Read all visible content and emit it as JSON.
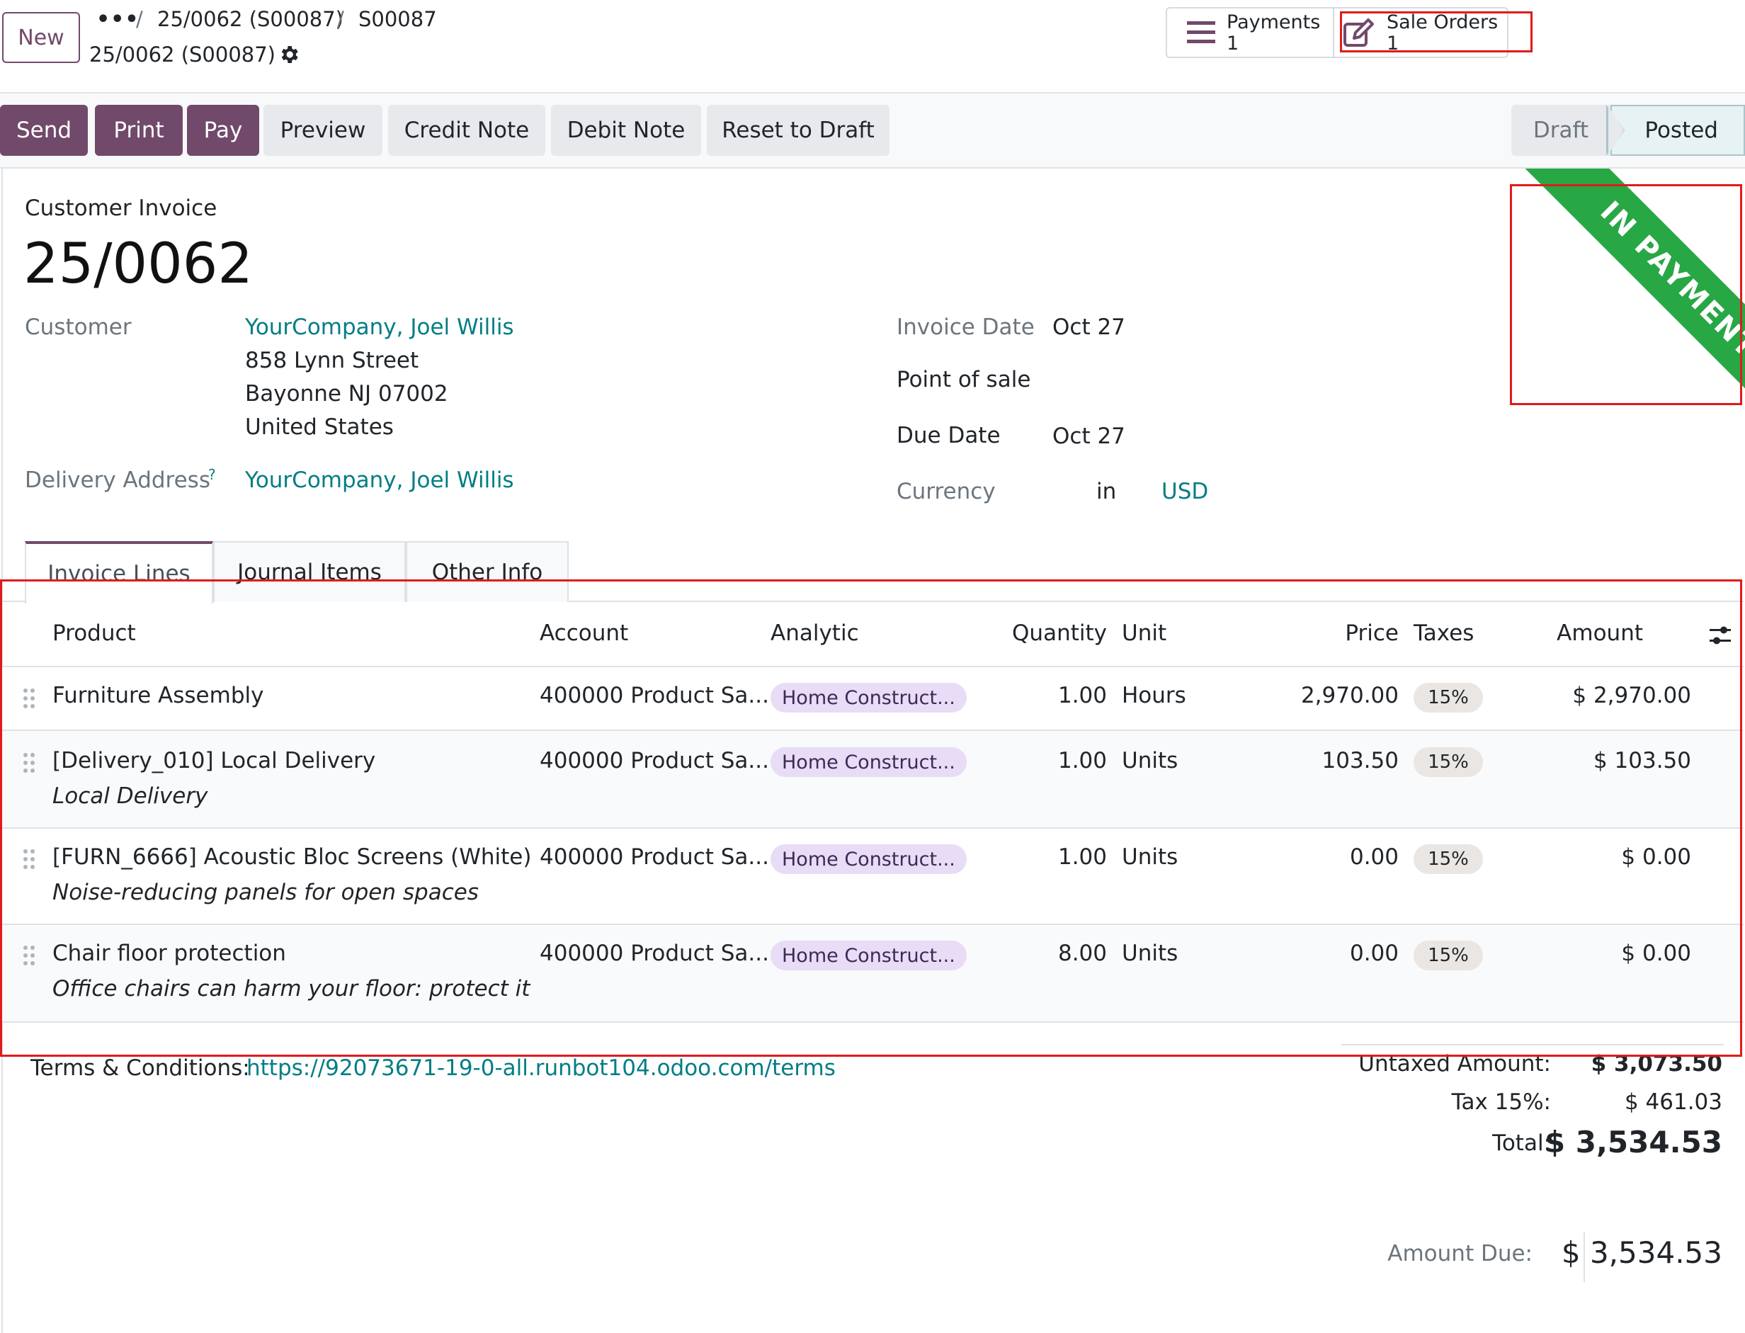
{
  "control_panel": {
    "new_label": "New",
    "breadcrumb": {
      "dots": "•••",
      "sep": "/",
      "item1": "25/0062 (S00087)",
      "item2": "S00087",
      "current": "25/0062 (S00087)"
    },
    "smart_buttons": [
      {
        "label": "Payments",
        "count": "1",
        "icon": "list-icon"
      },
      {
        "label": "Sale Orders",
        "count": "1",
        "icon": "edit-icon"
      }
    ]
  },
  "status_bar": {
    "actions": [
      "Send",
      "Print",
      "Pay",
      "Preview",
      "Credit Note",
      "Debit Note",
      "Reset to Draft"
    ],
    "stages": {
      "draft": "Draft",
      "posted": "Posted"
    },
    "current_stage": "Posted"
  },
  "ribbon": {
    "text": "IN PAYMENT",
    "color": "#28a745"
  },
  "invoice": {
    "type_label": "Customer Invoice",
    "number": "25/0062",
    "customer_label": "Customer",
    "customer_name": "YourCompany, Joel Willis",
    "address": [
      "858 Lynn Street",
      "Bayonne NJ 07002",
      "United States"
    ],
    "delivery_label": "Delivery Address",
    "delivery_help": "?",
    "delivery_name": "YourCompany, Joel Willis",
    "invoice_date_label": "Invoice Date",
    "invoice_date": "Oct 27",
    "pos_label": "Point of sale",
    "due_date_label": "Due Date",
    "due_date": "Oct 27",
    "currency_label": "Currency",
    "currency_in": "in",
    "currency": "USD"
  },
  "tabs": [
    "Invoice Lines",
    "Journal Items",
    "Other Info"
  ],
  "table": {
    "headers": {
      "product": "Product",
      "account": "Account",
      "analytic": "Analytic",
      "quantity": "Quantity",
      "unit": "Unit",
      "price": "Price",
      "taxes": "Taxes",
      "amount": "Amount"
    },
    "rows": [
      {
        "product": "Furniture Assembly",
        "note": "",
        "account": "400000 Product Sa...",
        "analytic": "Home Construct...",
        "quantity": "1.00",
        "unit": "Hours",
        "price": "2,970.00",
        "tax": "15%",
        "amount": "$ 2,970.00"
      },
      {
        "product": "[Delivery_010] Local Delivery",
        "note": "Local Delivery",
        "account": "400000 Product Sa...",
        "analytic": "Home Construct...",
        "quantity": "1.00",
        "unit": "Units",
        "price": "103.50",
        "tax": "15%",
        "amount": "$ 103.50"
      },
      {
        "product": "[FURN_6666] Acoustic Bloc Screens (White)",
        "note": "Noise-reducing panels for open spaces",
        "account": "400000 Product Sa...",
        "analytic": "Home Construct...",
        "quantity": "1.00",
        "unit": "Units",
        "price": "0.00",
        "tax": "15%",
        "amount": "$ 0.00"
      },
      {
        "product": "Chair floor protection",
        "note": "Office chairs can harm your floor: protect it",
        "account": "400000 Product Sa...",
        "analytic": "Home Construct...",
        "quantity": "8.00",
        "unit": "Units",
        "price": "0.00",
        "tax": "15%",
        "amount": "$ 0.00"
      }
    ]
  },
  "terms": {
    "label": "Terms & Conditions:",
    "url": "https://92073671-19-0-all.runbot104.odoo.com/terms"
  },
  "totals": {
    "untaxed_label": "Untaxed Amount:",
    "untaxed": "$ 3,073.50",
    "tax_label": "Tax 15%:",
    "tax": "$ 461.03",
    "total_label": "Total:",
    "total": "$ 3,534.53",
    "due_label": "Amount Due:",
    "due": "$ 3,534.53"
  },
  "colors": {
    "primary": "#71496a",
    "link": "#017e84",
    "ribbon": "#28a745",
    "highlight": "#e01b1b"
  }
}
